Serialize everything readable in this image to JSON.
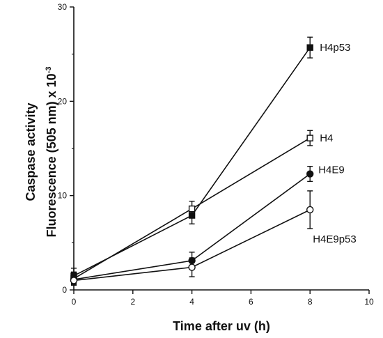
{
  "chart_data": {
    "type": "line",
    "title": "",
    "xlabel": "Time after uv (h)",
    "ylabel_line1": "Caspase activity",
    "ylabel_line2_main": "Fluorescence (505 nm) x 10",
    "ylabel_line2_sup": "-3",
    "xlim": [
      0,
      10
    ],
    "ylim": [
      0,
      30
    ],
    "xticks": [
      0,
      2,
      4,
      6,
      8,
      10
    ],
    "yticks": [
      0,
      10,
      20,
      30
    ],
    "grid": false,
    "legend": "direct labels",
    "series": [
      {
        "name": "H4p53",
        "marker": "square-filled",
        "x": [
          0,
          4,
          8
        ],
        "y": [
          1.5,
          7.9,
          25.7
        ],
        "err": [
          0.8,
          0.9,
          1.1
        ]
      },
      {
        "name": "H4",
        "marker": "square-open",
        "x": [
          0,
          4,
          8
        ],
        "y": [
          1.2,
          8.6,
          16.1
        ],
        "err": [
          0.7,
          0.8,
          0.8
        ]
      },
      {
        "name": "H4E9",
        "marker": "circle-filled",
        "x": [
          0,
          4,
          8
        ],
        "y": [
          1.1,
          3.1,
          12.3
        ],
        "err": [
          0.5,
          0.9,
          0.8
        ]
      },
      {
        "name": "H4E9p53",
        "marker": "circle-open",
        "x": [
          0,
          4,
          8
        ],
        "y": [
          1.0,
          2.4,
          8.5
        ],
        "err": [
          0.4,
          1.0,
          2.0
        ]
      }
    ],
    "colors": {
      "line": "#111111",
      "background": "#ffffff"
    }
  }
}
